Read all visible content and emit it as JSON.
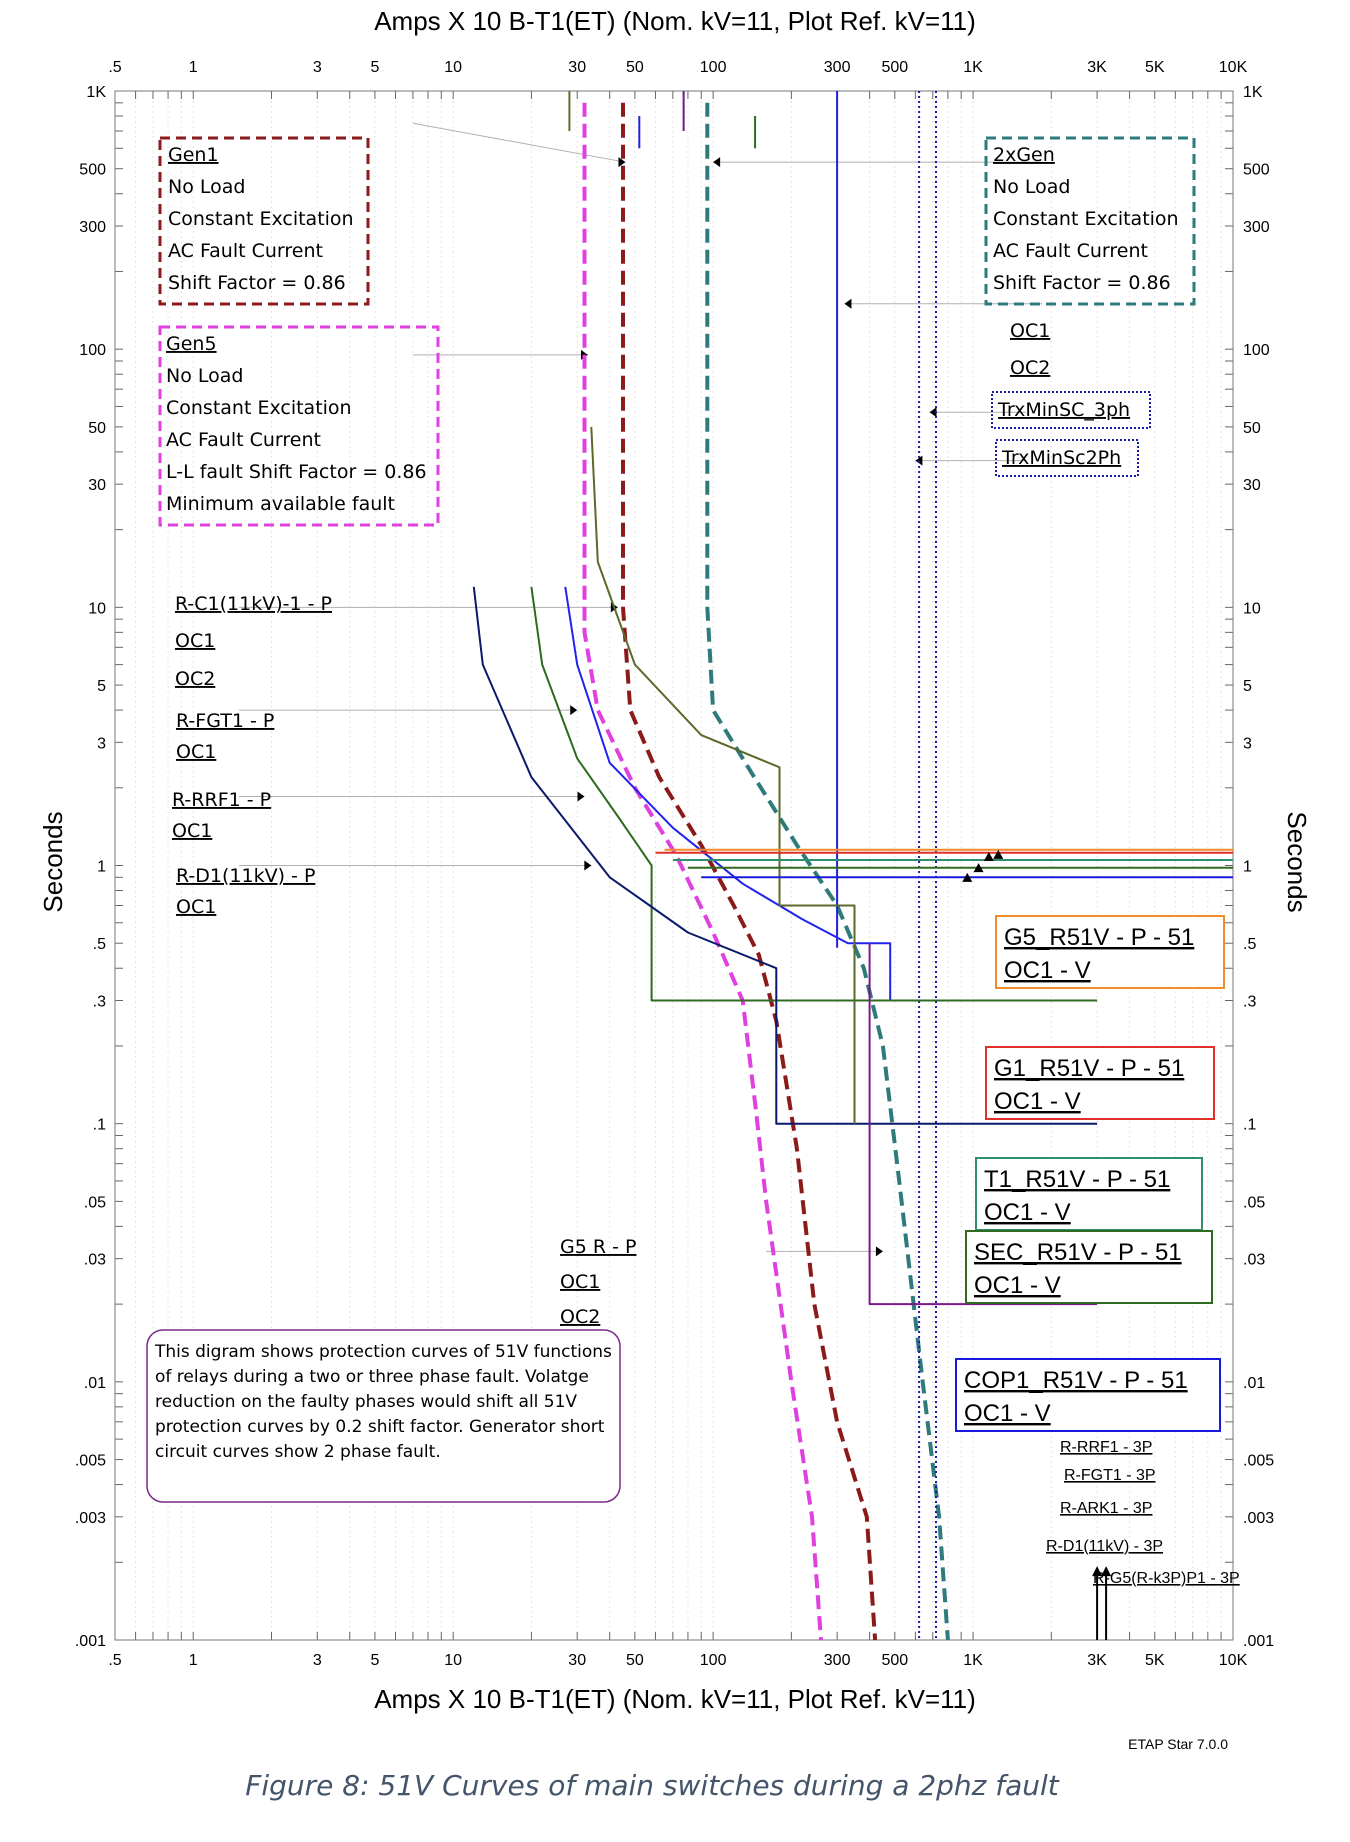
{
  "title_top": "Amps  X  10   B-T1(ET) (Nom. kV=11, Plot Ref. kV=11)",
  "title_bottom": "Amps  X  10   B-T1(ET) (Nom. kV=11, Plot Ref. kV=11)",
  "version": "ETAP Star 7.0.0",
  "caption": "Figure 8: 51V Curves of main switches during a 2phz fault",
  "chart_data": {
    "type": "line",
    "xlabel": "Amps  X  10   B-T1(ET) (Nom. kV=11, Plot Ref. kV=11)",
    "ylabel": "Seconds",
    "x_scale": "log",
    "y_scale": "log",
    "xlim": [
      0.5,
      10000
    ],
    "ylim": [
      0.001,
      1000
    ],
    "x_ticks": [
      {
        "v": 0.5,
        "label": ".5"
      },
      {
        "v": 1,
        "label": "1"
      },
      {
        "v": 3,
        "label": "3"
      },
      {
        "v": 5,
        "label": "5"
      },
      {
        "v": 10,
        "label": "10"
      },
      {
        "v": 30,
        "label": "30"
      },
      {
        "v": 50,
        "label": "50"
      },
      {
        "v": 100,
        "label": "100"
      },
      {
        "v": 300,
        "label": "300"
      },
      {
        "v": 500,
        "label": "500"
      },
      {
        "v": 1000,
        "label": "1K"
      },
      {
        "v": 3000,
        "label": "3K"
      },
      {
        "v": 5000,
        "label": "5K"
      },
      {
        "v": 10000,
        "label": "10K"
      }
    ],
    "y_ticks": [
      {
        "v": 1000,
        "label": "1K"
      },
      {
        "v": 500,
        "label": "500"
      },
      {
        "v": 300,
        "label": "300"
      },
      {
        "v": 100,
        "label": "100"
      },
      {
        "v": 50,
        "label": "50"
      },
      {
        "v": 30,
        "label": "30"
      },
      {
        "v": 10,
        "label": "10"
      },
      {
        "v": 5,
        "label": "5"
      },
      {
        "v": 3,
        "label": "3"
      },
      {
        "v": 1,
        "label": "1"
      },
      {
        "v": 0.5,
        "label": ".5"
      },
      {
        "v": 0.3,
        "label": ".3"
      },
      {
        "v": 0.1,
        "label": ".1"
      },
      {
        "v": 0.05,
        "label": ".05"
      },
      {
        "v": 0.03,
        "label": ".03"
      },
      {
        "v": 0.01,
        "label": ".01"
      },
      {
        "v": 0.005,
        "label": ".005"
      },
      {
        "v": 0.003,
        "label": ".003"
      },
      {
        "v": 0.001,
        "label": ".001"
      }
    ],
    "series": [
      {
        "name": "Gen1",
        "color": "#8b1a1a",
        "dash": "dashed",
        "width": 4,
        "points": [
          [
            45,
            900
          ],
          [
            45,
            10
          ],
          [
            48,
            4
          ],
          [
            62,
            2.2
          ],
          [
            90,
            1.2
          ],
          [
            120,
            0.7
          ],
          [
            150,
            0.45
          ],
          [
            175,
            0.25
          ],
          [
            210,
            0.08
          ],
          [
            245,
            0.02
          ],
          [
            300,
            0.007
          ],
          [
            390,
            0.003
          ],
          [
            420,
            0.001
          ]
        ]
      },
      {
        "name": "Gen5",
        "color": "#e040e0",
        "dash": "dashed",
        "width": 4,
        "points": [
          [
            32,
            900
          ],
          [
            32,
            8
          ],
          [
            36,
            4
          ],
          [
            50,
            2
          ],
          [
            72,
            1.1
          ],
          [
            100,
            0.55
          ],
          [
            130,
            0.3
          ],
          [
            145,
            0.12
          ],
          [
            160,
            0.05
          ],
          [
            200,
            0.01
          ],
          [
            240,
            0.003
          ],
          [
            260,
            0.001
          ]
        ]
      },
      {
        "name": "2xGen",
        "color": "#2f7a7a",
        "dash": "dashed",
        "width": 4,
        "points": [
          [
            95,
            900
          ],
          [
            95,
            10
          ],
          [
            100,
            4
          ],
          [
            140,
            2.3
          ],
          [
            210,
            1.2
          ],
          [
            300,
            0.7
          ],
          [
            380,
            0.4
          ],
          [
            450,
            0.2
          ],
          [
            520,
            0.06
          ],
          [
            640,
            0.01
          ],
          [
            740,
            0.003
          ],
          [
            800,
            0.001
          ]
        ]
      },
      {
        "name": "TrxMinSC_3ph",
        "color": "#1a1aaa",
        "dash": "dotted",
        "width": 2,
        "points": [
          [
            720,
            1000
          ],
          [
            720,
            0.001
          ]
        ]
      },
      {
        "name": "TrxMinSc2Ph",
        "color": "#1a1aaa",
        "dash": "dotted",
        "width": 2,
        "points": [
          [
            620,
            1000
          ],
          [
            620,
            0.001
          ]
        ]
      },
      {
        "name": "R-C1(11kV)-1 - P",
        "color": "#2020dd",
        "dash": "solid",
        "width": 2,
        "points": [
          [
            300,
            1000
          ],
          [
            300,
            0.48
          ]
        ]
      },
      {
        "name": "R-FGT1 - P",
        "color": "#2222ee",
        "dash": "solid",
        "width": 2,
        "points": [
          [
            27,
            12
          ],
          [
            30,
            6
          ],
          [
            40,
            2.5
          ],
          [
            70,
            1.4
          ],
          [
            130,
            0.85
          ],
          [
            220,
            0.62
          ],
          [
            330,
            0.5
          ],
          [
            480,
            0.5
          ],
          [
            480,
            0.3
          ]
        ]
      },
      {
        "name": "R-RRF1 - P",
        "color": "#2f6a1f",
        "dash": "solid",
        "width": 2,
        "points": [
          [
            20,
            12
          ],
          [
            22,
            6
          ],
          [
            30,
            2.6
          ],
          [
            44,
            1.5
          ],
          [
            58,
            1.0
          ],
          [
            58,
            0.3
          ],
          [
            3000,
            0.3
          ]
        ]
      },
      {
        "name": "R-D1(11kV) - P",
        "color": "#0a1a6a",
        "dash": "solid",
        "width": 2,
        "points": [
          [
            12,
            12
          ],
          [
            13,
            6
          ],
          [
            20,
            2.2
          ],
          [
            40,
            0.9
          ],
          [
            80,
            0.55
          ],
          [
            175,
            0.4
          ],
          [
            175,
            0.1
          ],
          [
            3000,
            0.1
          ]
        ]
      },
      {
        "name": "G5_R51V - P - 51",
        "color": "#5a6a2a",
        "dash": "solid",
        "width": 2,
        "points": [
          [
            34,
            50
          ],
          [
            36,
            15
          ],
          [
            50,
            6
          ],
          [
            90,
            3.2
          ],
          [
            180,
            2.4
          ],
          [
            180,
            0.7
          ],
          [
            350,
            0.7
          ],
          [
            350,
            0.1
          ]
        ]
      },
      {
        "name": "G5 R - P",
        "color": "#7a1a8a",
        "dash": "solid",
        "width": 2,
        "points": [
          [
            400,
            0.5
          ],
          [
            400,
            0.02
          ],
          [
            3000,
            0.02
          ]
        ]
      },
      {
        "name": "G1_R51V - P - 51",
        "color": "#e0302a",
        "dash": "solid",
        "width": 2,
        "points": [
          [
            60,
            1.12
          ],
          [
            10000,
            1.12
          ]
        ]
      },
      {
        "name": "T1_R51V - P - 51",
        "color": "#2f8f6f",
        "dash": "solid",
        "width": 2,
        "points": [
          [
            70,
            1.05
          ],
          [
            10000,
            1.05
          ]
        ]
      },
      {
        "name": "SEC_R51V - P - 51",
        "color": "#2f6a1f",
        "dash": "solid",
        "width": 2,
        "points": [
          [
            80,
            0.98
          ],
          [
            10000,
            0.98
          ]
        ]
      },
      {
        "name": "COP1_R51V - P - 51",
        "color": "#1a1add",
        "dash": "solid",
        "width": 2,
        "points": [
          [
            90,
            0.9
          ],
          [
            10000,
            0.9
          ]
        ]
      },
      {
        "name": "G5_R51V - P - 51 OC1 - V",
        "color": "#f08a2a",
        "dash": "solid",
        "width": 2,
        "points": [
          [
            65,
            1.15
          ],
          [
            10000,
            1.15
          ]
        ]
      },
      {
        "name": "R-RRF1 - 3P",
        "color": "#000000",
        "dash": "solid",
        "width": 2,
        "points": [
          [
            3000,
            0.0018
          ],
          [
            3000,
            0.001
          ]
        ]
      },
      {
        "name": "R-FGT1 - 3P",
        "color": "#000000",
        "dash": "solid",
        "width": 2,
        "points": [
          [
            3250,
            0.0018
          ],
          [
            3250,
            0.001
          ]
        ]
      }
    ],
    "markers": [
      {
        "name": "Gen1-stub",
        "color": "#6a6a2a",
        "points": [
          [
            28,
            1000
          ],
          [
            28,
            700
          ]
        ]
      },
      {
        "name": "blue-stub",
        "color": "#2020dd",
        "points": [
          [
            52,
            800
          ],
          [
            52,
            600
          ]
        ]
      },
      {
        "name": "purple-stub",
        "color": "#6a1a8a",
        "points": [
          [
            77,
            1000
          ],
          [
            77,
            700
          ]
        ]
      },
      {
        "name": "green-stub",
        "color": "#2f6a1f",
        "points": [
          [
            145,
            800
          ],
          [
            145,
            600
          ]
        ]
      }
    ],
    "leader_lines": [
      {
        "from": [
          7,
          750
        ],
        "to": [
          46,
          530
        ]
      },
      {
        "from": [
          7,
          95
        ],
        "to": [
          33,
          95
        ]
      },
      {
        "from": [
          1.5,
          10
        ],
        "to": [
          43,
          10
        ]
      },
      {
        "from": [
          1.5,
          4
        ],
        "to": [
          30,
          4
        ]
      },
      {
        "from": [
          1.5,
          1.85
        ],
        "to": [
          32,
          1.85
        ]
      },
      {
        "from": [
          1.5,
          1.0
        ],
        "to": [
          34,
          1.0
        ]
      },
      {
        "from": [
          1850,
          530
        ],
        "to": [
          100,
          530
        ]
      },
      {
        "from": [
          1850,
          150
        ],
        "to": [
          320,
          150
        ]
      },
      {
        "from": [
          1600,
          57
        ],
        "to": [
          680,
          57
        ]
      },
      {
        "from": [
          1600,
          37
        ],
        "to": [
          600,
          37
        ]
      },
      {
        "from": [
          160,
          0.032
        ],
        "to": [
          450,
          0.032
        ]
      }
    ],
    "labels": {
      "gen1": [
        "Gen1",
        "No Load",
        "Constant Excitation",
        "AC Fault Current",
        "Shift Factor = 0.86"
      ],
      "gen5": [
        "Gen5",
        "No Load",
        "Constant Excitation",
        "AC Fault Current",
        "L-L fault Shift Factor = 0.86",
        "Minimum available fault"
      ],
      "gen2x": [
        "2xGen",
        "No Load",
        "Constant Excitation",
        "AC Fault Current",
        "Shift Factor = 0.86"
      ],
      "oc1_right": "OC1",
      "oc2_right": "OC2",
      "trx3": "TrxMinSC_3ph",
      "trx2": "TrxMinSc2Ph",
      "rc1": "R-C1(11kV)-1 - P",
      "oc1_a": "OC1",
      "oc2_a": "OC2",
      "rfgt1": "R-FGT1 - P",
      "oc1_b": "OC1",
      "rrrf1": "R-RRF1 - P",
      "oc1_c": "OC1",
      "rd1": "R-D1(11kV) - P",
      "oc1_d": "OC1",
      "g5r": "G5  R - P",
      "oc1_e": "OC1",
      "oc2_e": "OC2",
      "box_g5": [
        "G5_R51V - P - 51",
        "OC1 - V"
      ],
      "box_g1": [
        "G1_R51V - P - 51",
        "OC1 - V"
      ],
      "box_t1": [
        "T1_R51V - P - 51",
        "OC1 - V"
      ],
      "box_sec": [
        "SEC_R51V - P - 51",
        "OC1 - V"
      ],
      "box_cop1": [
        "COP1_R51V - P - 51",
        "OC1 - V"
      ],
      "p3_rrf1": "R-RRF1 - 3P",
      "p3_fgt1": "R-FGT1 - 3P",
      "p3_ark1": "R-ARK1 - 3P",
      "p3_d1": "R-D1(11kV) - 3P",
      "p3_overlap": "R-G5(R-k3P)P1 - 3P",
      "note": [
        "This digram shows protection curves of 51V functions",
        "of relays during a two or three phase fault. Volatge",
        "reduction on the faulty phases would shift all 51V",
        "protection curves by 0.2 shift factor. Generator short",
        "circuit curves show 2 phase fault."
      ]
    }
  }
}
